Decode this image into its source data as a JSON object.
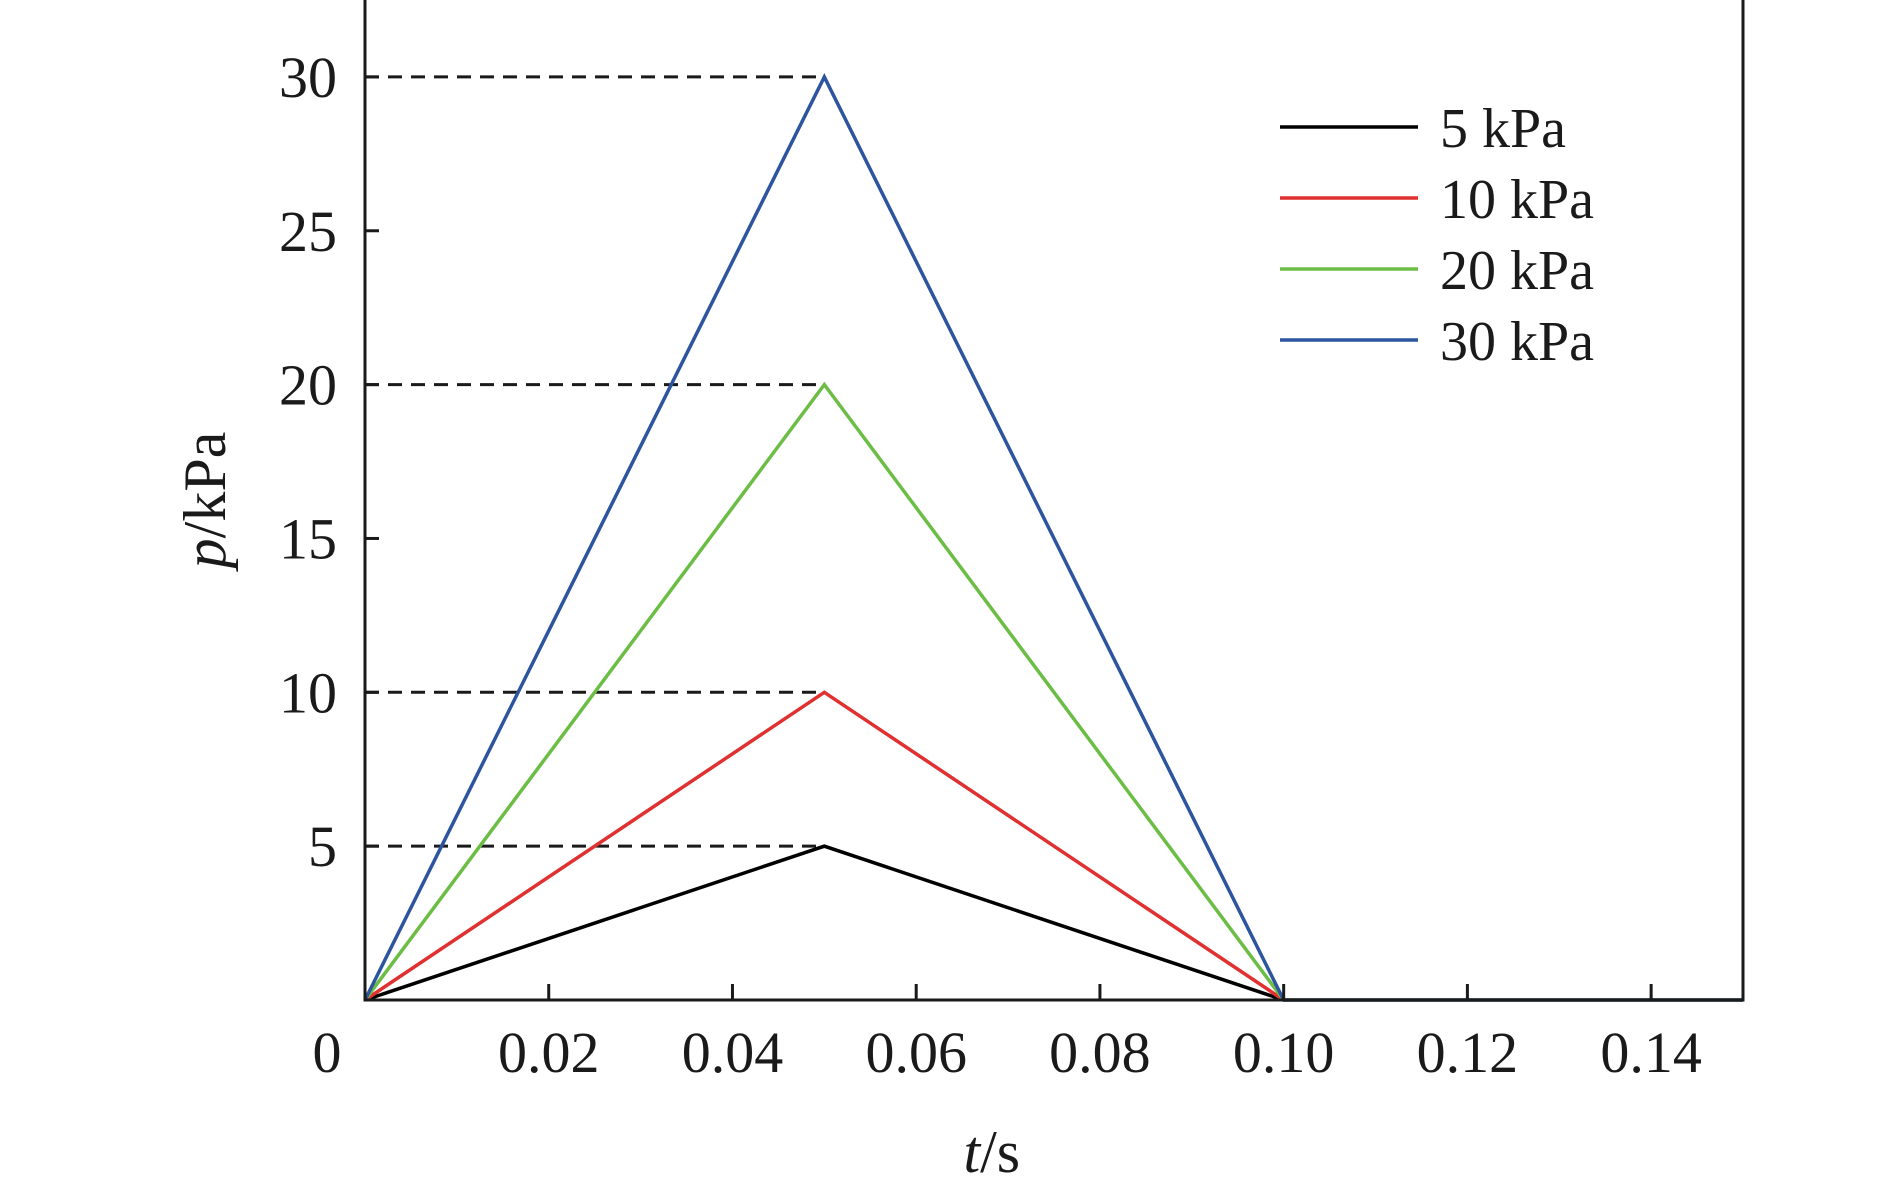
{
  "chart_data": {
    "type": "line",
    "xlabel_var": "t",
    "xlabel_unit": "/s",
    "ylabel_var": "p",
    "ylabel_unit": "/kPa",
    "xlim": [
      0,
      0.15
    ],
    "ylim": [
      0,
      32.5
    ],
    "x_ticks": [
      0,
      0.02,
      0.04,
      0.06,
      0.08,
      0.1,
      0.12,
      0.14
    ],
    "x_tick_labels": [
      "0",
      "0.02",
      "0.04",
      "0.06",
      "0.08",
      "0.10",
      "0.12",
      "0.14"
    ],
    "y_ticks": [
      5,
      10,
      15,
      20,
      25,
      30
    ],
    "y_tick_labels": [
      "5",
      "10",
      "15",
      "20",
      "25",
      "30"
    ],
    "grid": false,
    "legend_position": "top-right",
    "reference_lines": [
      {
        "y": 5,
        "x_start": 0,
        "x_end": 0.05,
        "style": "dashed"
      },
      {
        "y": 10,
        "x_start": 0,
        "x_end": 0.05,
        "style": "dashed"
      },
      {
        "y": 20,
        "x_start": 0,
        "x_end": 0.05,
        "style": "dashed"
      },
      {
        "y": 30,
        "x_start": 0,
        "x_end": 0.05,
        "style": "dashed"
      }
    ],
    "series": [
      {
        "name": "5 kPa",
        "color": "#000000",
        "x": [
          0,
          0.05,
          0.1,
          0.15
        ],
        "y": [
          0,
          5,
          0,
          0
        ]
      },
      {
        "name": "10 kPa",
        "color": "#e03030",
        "x": [
          0,
          0.05,
          0.1,
          0.15
        ],
        "y": [
          0,
          10,
          0,
          0
        ]
      },
      {
        "name": "20 kPa",
        "color": "#6cbd45",
        "x": [
          0,
          0.05,
          0.1,
          0.15
        ],
        "y": [
          0,
          20,
          0,
          0
        ]
      },
      {
        "name": "30 kPa",
        "color": "#2d559f",
        "x": [
          0,
          0.05,
          0.1,
          0.15
        ],
        "y": [
          0,
          30,
          0,
          0
        ]
      }
    ]
  }
}
